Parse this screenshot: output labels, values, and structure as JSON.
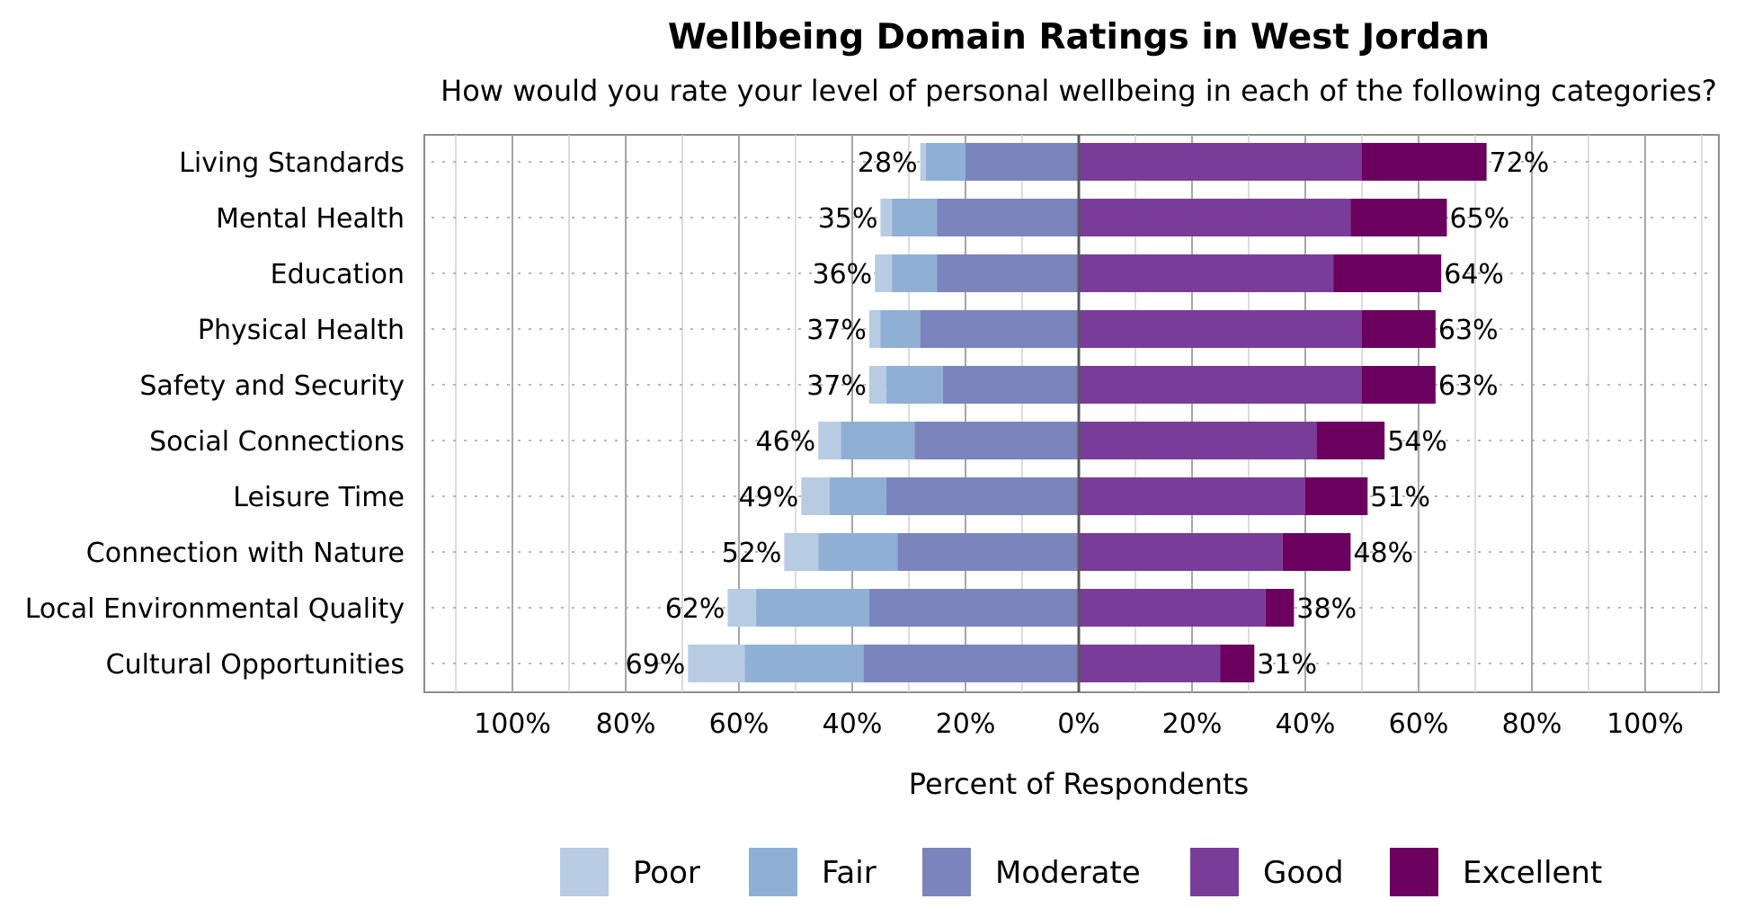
{
  "chart_data": {
    "type": "bar",
    "orientation": "horizontal",
    "stacked": "diverging",
    "title": "Wellbeing Domain Ratings in West Jordan",
    "subtitle": "How would you rate your level of personal wellbeing in each of the following categories?",
    "xlabel": "Percent of Respondents",
    "xlim": [
      -100,
      100
    ],
    "x_tick_values": [
      -100,
      -80,
      -60,
      -40,
      -20,
      0,
      20,
      40,
      60,
      80,
      100
    ],
    "x_tick_labels": [
      "100%",
      "80%",
      "60%",
      "40%",
      "20%",
      "0%",
      "20%",
      "40%",
      "60%",
      "80%",
      "100%"
    ],
    "grid": true,
    "legend_position": "bottom",
    "categories": [
      "Living Standards",
      "Mental Health",
      "Education",
      "Physical Health",
      "Safety and Security",
      "Social Connections",
      "Leisure Time",
      "Connection with Nature",
      "Local Environmental Quality",
      "Cultural Opportunities"
    ],
    "series": [
      {
        "name": "Poor",
        "side": "negative",
        "color": "#b7cbe2",
        "values": [
          1,
          2,
          3,
          2,
          3,
          4,
          5,
          6,
          5,
          10
        ]
      },
      {
        "name": "Fair",
        "side": "negative",
        "color": "#8fb0d4",
        "values": [
          7,
          8,
          8,
          7,
          10,
          13,
          10,
          14,
          20,
          21
        ]
      },
      {
        "name": "Moderate",
        "side": "negative",
        "color": "#7b84bc",
        "values": [
          20,
          25,
          25,
          28,
          24,
          29,
          34,
          32,
          37,
          38
        ]
      },
      {
        "name": "Good",
        "side": "positive",
        "color": "#793d99",
        "values": [
          50,
          48,
          45,
          50,
          50,
          42,
          40,
          36,
          33,
          25
        ]
      },
      {
        "name": "Excellent",
        "side": "positive",
        "color": "#6c005f",
        "values": [
          22,
          17,
          19,
          13,
          13,
          12,
          11,
          12,
          5,
          6
        ]
      }
    ],
    "negative_totals": [
      "28%",
      "35%",
      "36%",
      "37%",
      "37%",
      "46%",
      "49%",
      "52%",
      "62%",
      "69%"
    ],
    "positive_totals": [
      "72%",
      "65%",
      "64%",
      "63%",
      "63%",
      "54%",
      "51%",
      "48%",
      "38%",
      "31%"
    ]
  }
}
